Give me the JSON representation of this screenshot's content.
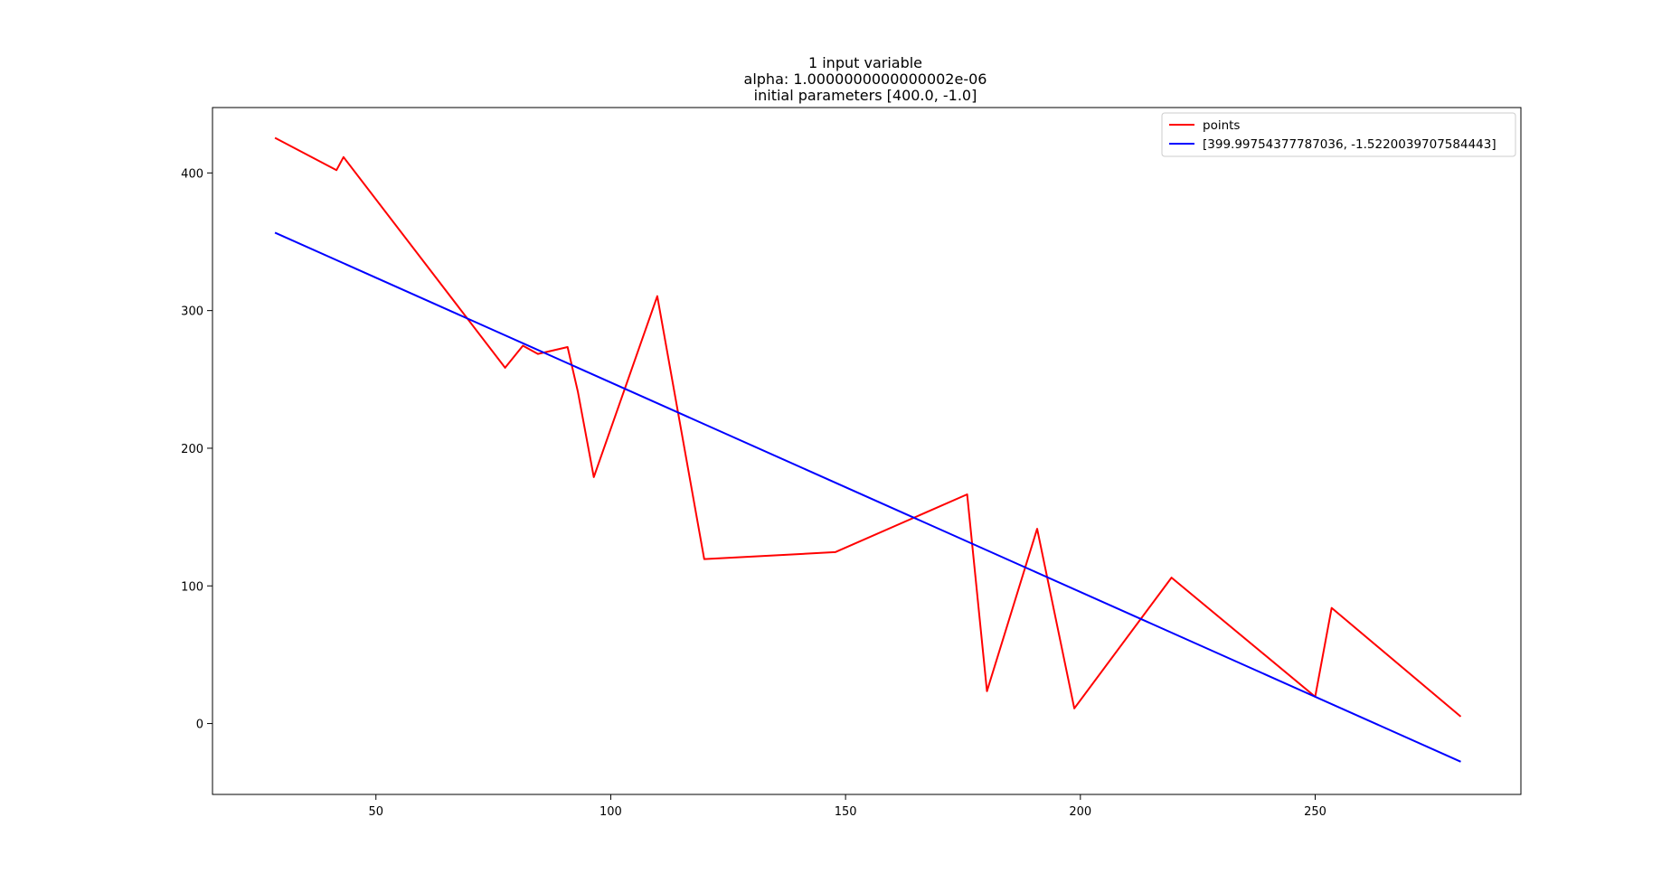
{
  "chart_data": {
    "type": "line",
    "title": [
      "1 input variable",
      "alpha: 1.0000000000000002e-06",
      "initial parameters [400.0, -1.0]"
    ],
    "xlabel": "",
    "ylabel": "",
    "xlim": [
      15.2,
      293.8
    ],
    "ylim": [
      -51.5,
      447.5
    ],
    "xticks": [
      50,
      100,
      150,
      200,
      250
    ],
    "yticks": [
      0,
      100,
      200,
      300,
      400
    ],
    "grid": false,
    "legend_position": "top-right",
    "series": [
      {
        "name": "points",
        "color": "#ff0000",
        "x": [
          28.5,
          41.6,
          43.1,
          77.5,
          81.3,
          84.5,
          90.8,
          93.0,
          96.4,
          109.9,
          119.9,
          147.8,
          175.9,
          180.1,
          190.8,
          198.7,
          219.4,
          250.0,
          253.5,
          281.0
        ],
        "y": [
          425.5,
          402.0,
          411.5,
          258.5,
          274.5,
          268.5,
          273.5,
          241.0,
          179.0,
          310.5,
          119.5,
          124.5,
          166.5,
          23.5,
          141.5,
          11.0,
          106.0,
          19.5,
          84.0,
          5.0
        ]
      },
      {
        "name": "[399.99754377787036, -1.5220039707584443]",
        "color": "#0000ff",
        "x": [
          28.5,
          281.0
        ],
        "y": [
          356.6,
          -27.7
        ]
      }
    ]
  }
}
